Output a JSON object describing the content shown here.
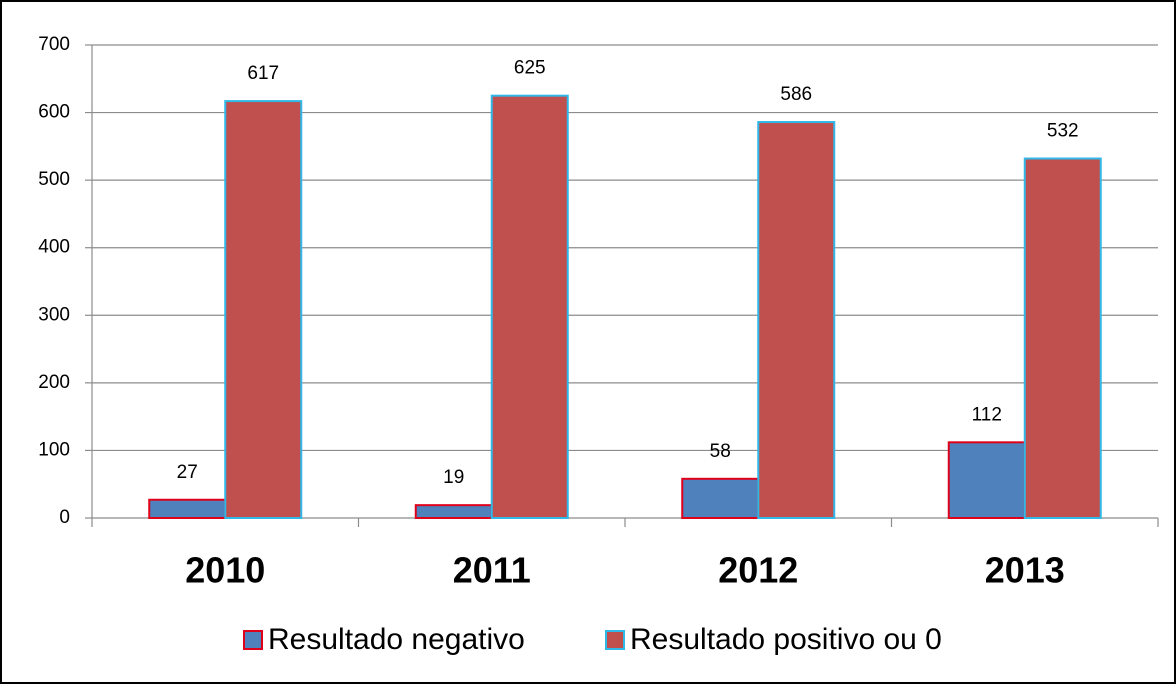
{
  "chart_data": {
    "type": "bar",
    "categories": [
      "2010",
      "2011",
      "2012",
      "2013"
    ],
    "series": [
      {
        "name": "Resultado negativo",
        "color": "#4f81bd",
        "border": "#e0001a",
        "values": [
          27,
          19,
          58,
          112
        ]
      },
      {
        "name": "Resultado positivo ou 0",
        "color": "#c0504d",
        "border": "#2fb8e8",
        "values": [
          617,
          625,
          586,
          532
        ]
      }
    ],
    "ylim": [
      0,
      700
    ],
    "yticks": [
      0,
      100,
      200,
      300,
      400,
      500,
      600,
      700
    ],
    "grid": true,
    "legend": "bottom"
  }
}
